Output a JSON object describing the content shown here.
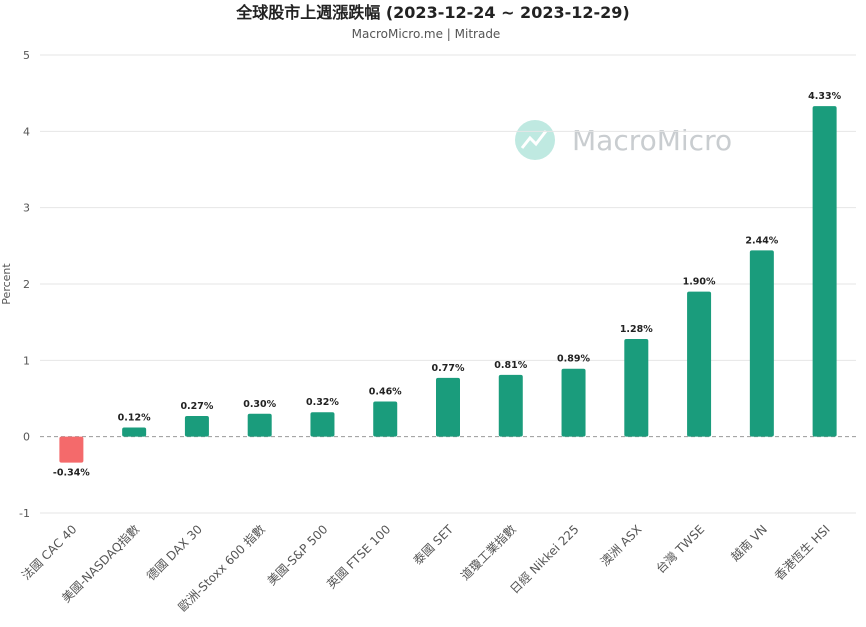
{
  "chart_data": {
    "type": "bar",
    "title": "全球股市上週漲跌幅 (2023-12-24 ~ 2023-12-29)",
    "subtitle": "MacroMicro.me | Mitrade",
    "ylabel": "Percent",
    "ylim": [
      -1,
      5
    ],
    "yticks": [
      -1,
      0,
      1,
      2,
      3,
      4,
      5
    ],
    "grid": true,
    "watermark": "MacroMicro",
    "categories": [
      "法國 CAC 40",
      "美國-NASDAQ指數",
      "德國 DAX 30",
      "歐洲-Stoxx 600 指數",
      "美國-S&P 500",
      "英國 FTSE 100",
      "泰國 SET",
      "道瓊工業指數",
      "日經 Nikkei 225",
      "澳洲 ASX",
      "台灣 TWSE",
      "越南 VN",
      "香港恆生 HSI"
    ],
    "values": [
      -0.34,
      0.12,
      0.27,
      0.3,
      0.32,
      0.46,
      0.77,
      0.81,
      0.89,
      1.28,
      1.9,
      2.44,
      4.33
    ],
    "data_labels": [
      "-0.34%",
      "0.12%",
      "0.27%",
      "0.30%",
      "0.32%",
      "0.46%",
      "0.77%",
      "0.81%",
      "0.89%",
      "1.28%",
      "1.90%",
      "2.44%",
      "4.33%"
    ],
    "colors": {
      "positive": "#1a9c7c",
      "negative": "#f46a6b",
      "grid": "#e6e6e6",
      "zero_line": "#999999"
    }
  }
}
